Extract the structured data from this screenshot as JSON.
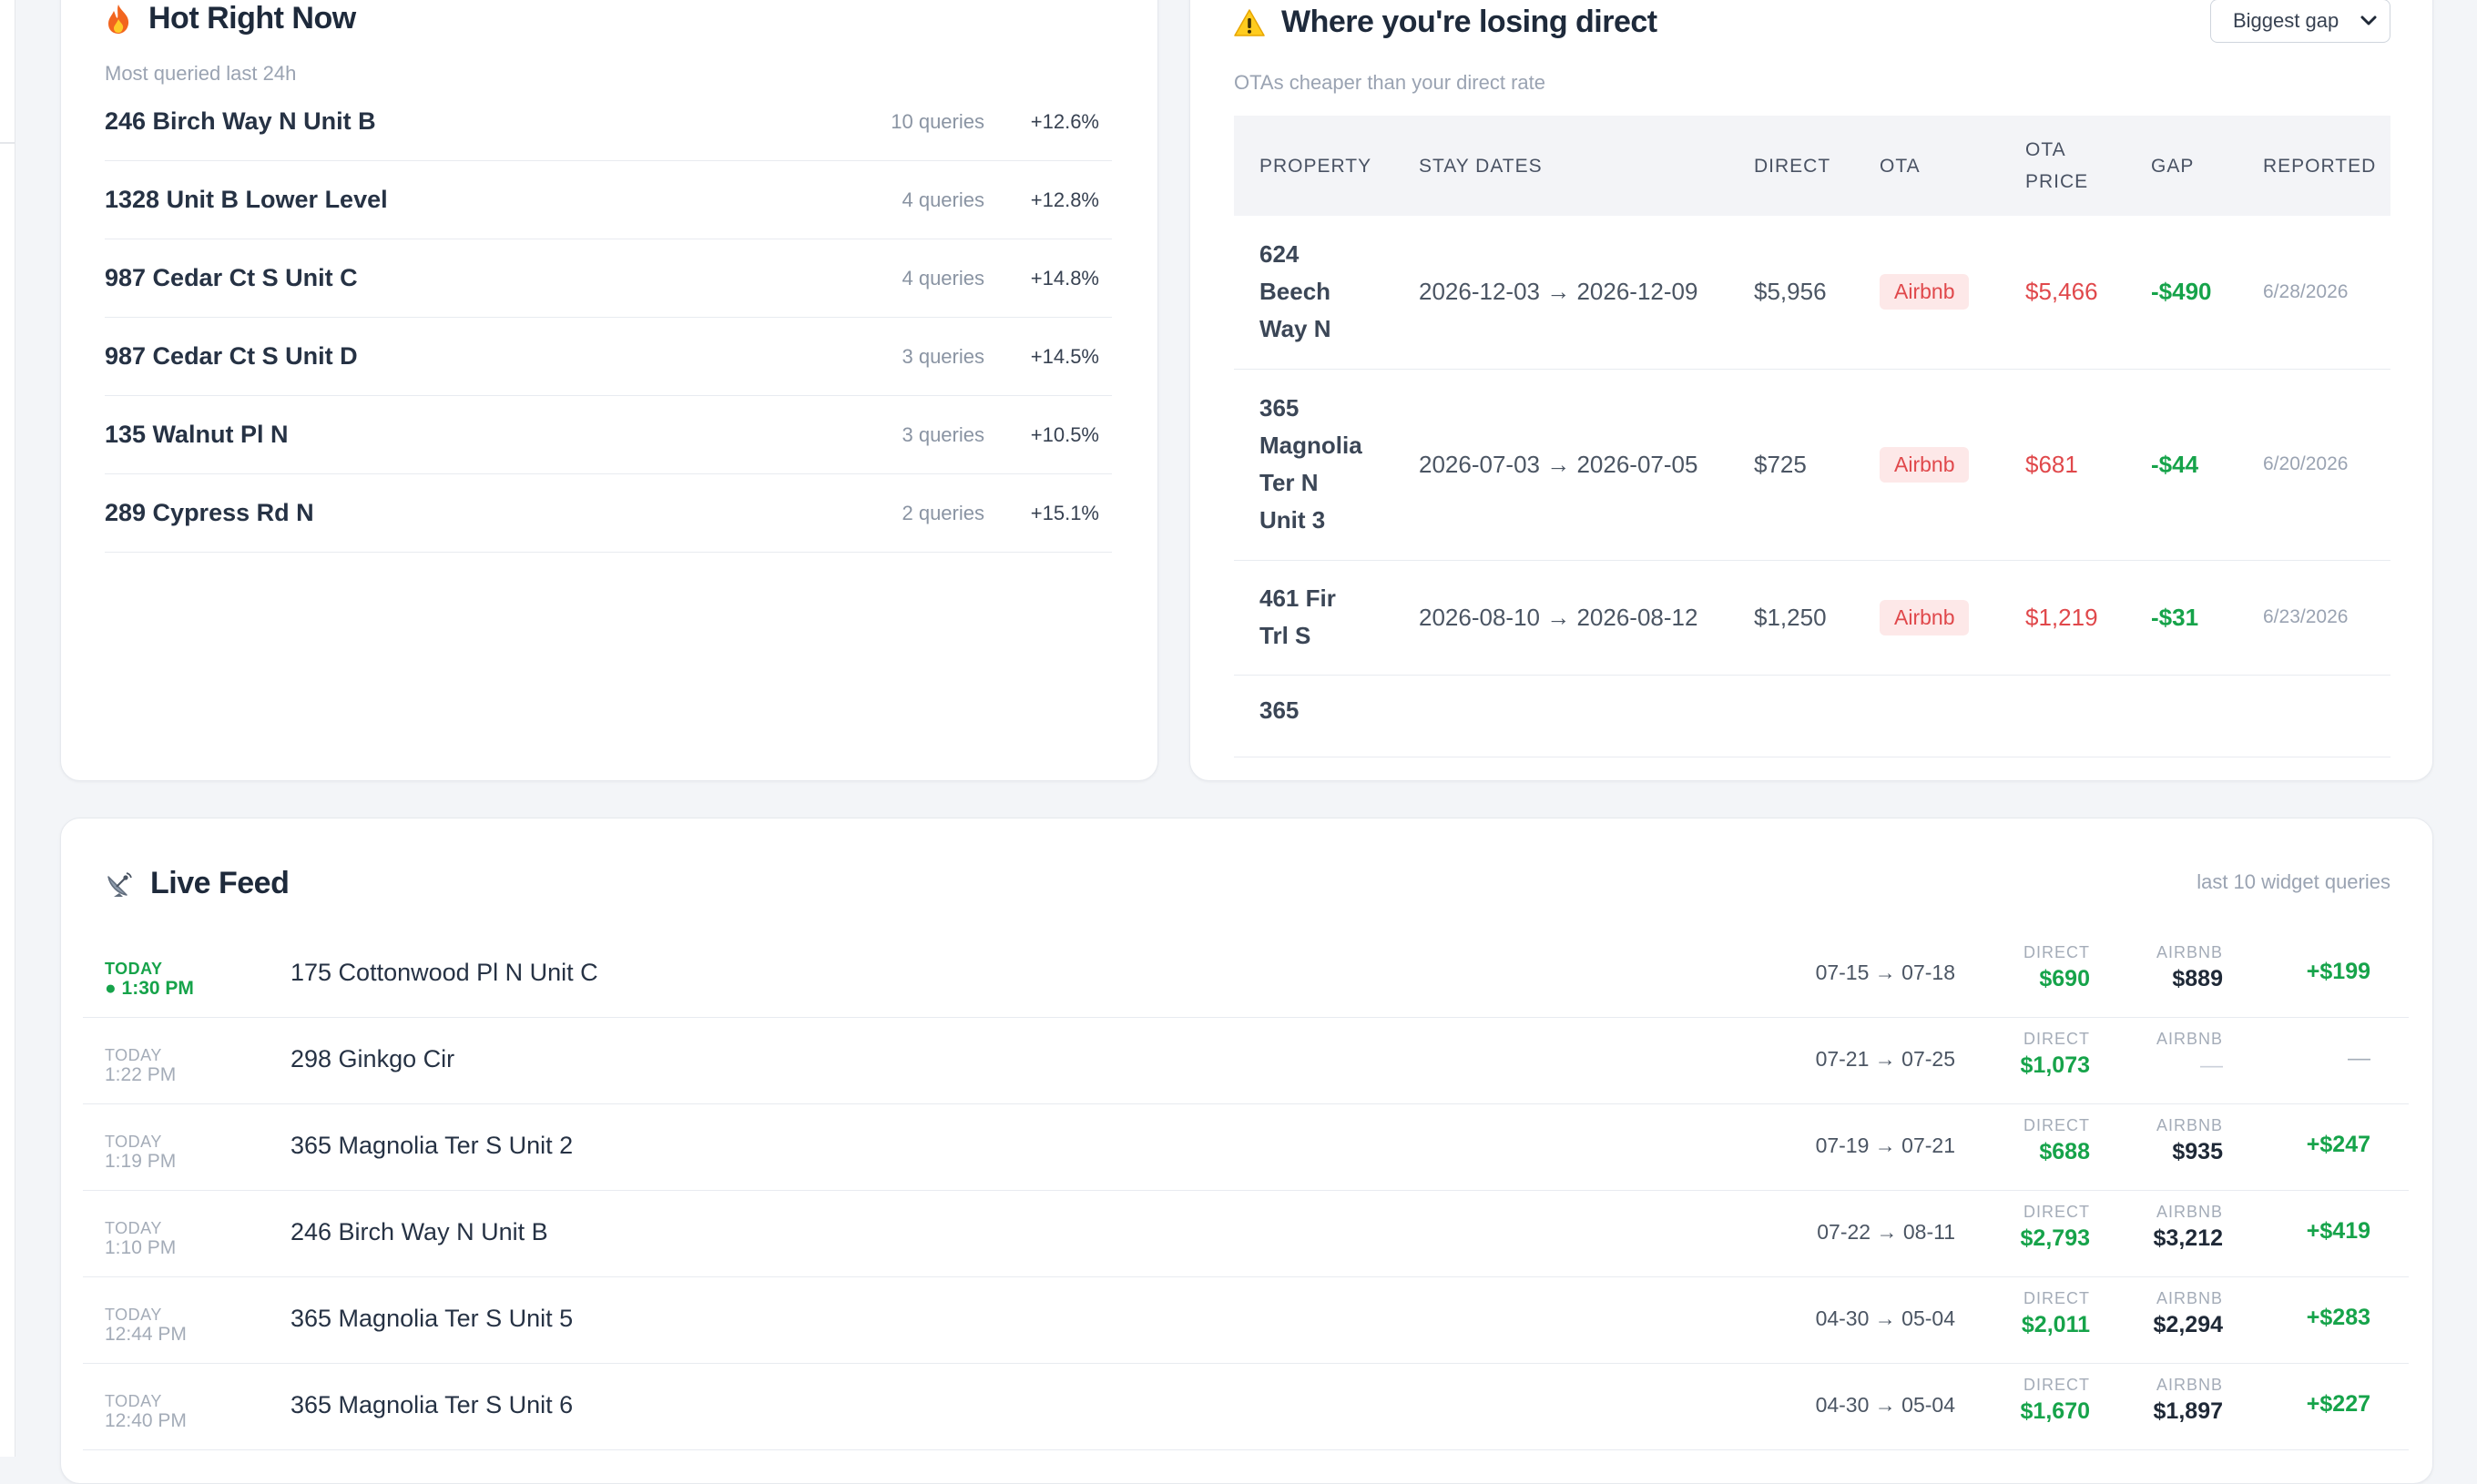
{
  "hot": {
    "title": "Hot Right Now",
    "subtitle": "Most queried last 24h",
    "icon": "fire-icon",
    "items": [
      {
        "name": "246 Birch Way N Unit B",
        "queries": "10 queries",
        "change": "+12.6%"
      },
      {
        "name": "1328 Unit B Lower Level",
        "queries": "4 queries",
        "change": "+12.8%"
      },
      {
        "name": "987 Cedar Ct S Unit C",
        "queries": "4 queries",
        "change": "+14.8%"
      },
      {
        "name": "987 Cedar Ct S Unit D",
        "queries": "3 queries",
        "change": "+14.5%"
      },
      {
        "name": "135 Walnut Pl N",
        "queries": "3 queries",
        "change": "+10.5%"
      },
      {
        "name": "289 Cypress Rd N",
        "queries": "2 queries",
        "change": "+15.1%"
      }
    ]
  },
  "losing": {
    "title": "Where you're losing direct",
    "subtitle": "OTAs cheaper than your direct rate",
    "icon": "warning-icon",
    "sort_selected": "Biggest gap",
    "columns": [
      "PROPERTY",
      "STAY DATES",
      "DIRECT",
      "OTA",
      "OTA\nPRICE",
      "GAP",
      "REPORTED"
    ],
    "rows": [
      {
        "property": "624\nBeech\nWay N",
        "dates": "2026-12-03 → 2026-12-09",
        "direct": "$5,956",
        "ota": "Airbnb",
        "ota_price": "$5,466",
        "gap": "-$490",
        "reported": "6/28/2026"
      },
      {
        "property": "365\nMagnolia\nTer N\nUnit 3",
        "dates": "2026-07-03 → 2026-07-05",
        "direct": "$725",
        "ota": "Airbnb",
        "ota_price": "$681",
        "gap": "-$44",
        "reported": "6/20/2026"
      },
      {
        "property": "461 Fir\nTrl S",
        "dates": "2026-08-10 → 2026-08-12",
        "direct": "$1,250",
        "ota": "Airbnb",
        "ota_price": "$1,219",
        "gap": "-$31",
        "reported": "6/23/2026"
      },
      {
        "property": "365",
        "dates": "",
        "direct": "",
        "ota": "",
        "ota_price": "",
        "gap": "",
        "reported": ""
      }
    ],
    "colors": {
      "ota_price": "#e0484b",
      "gap": "#16a34a",
      "badge_bg": "#fde8e8"
    }
  },
  "feed": {
    "title": "Live Feed",
    "subtitle": "last 10 widget queries",
    "icon": "satellite-dish-icon",
    "direct_label": "DIRECT",
    "ota_label": "AIRBNB",
    "rows": [
      {
        "day": "TODAY",
        "time": "● 1:30 PM",
        "live": true,
        "property": "175 Cottonwood Pl N Unit C",
        "dates": "07-15 → 07-18",
        "direct": "$690",
        "ota": "$889",
        "diff": "+$199"
      },
      {
        "day": "TODAY",
        "time": "1:22 PM",
        "live": false,
        "property": "298 Ginkgo Cir",
        "dates": "07-21 → 07-25",
        "direct": "$1,073",
        "ota": "—",
        "diff": "—"
      },
      {
        "day": "TODAY",
        "time": "1:19 PM",
        "live": false,
        "property": "365 Magnolia Ter S Unit 2",
        "dates": "07-19 → 07-21",
        "direct": "$688",
        "ota": "$935",
        "diff": "+$247"
      },
      {
        "day": "TODAY",
        "time": "1:10 PM",
        "live": false,
        "property": "246 Birch Way N Unit B",
        "dates": "07-22 → 08-11",
        "direct": "$2,793",
        "ota": "$3,212",
        "diff": "+$419"
      },
      {
        "day": "TODAY",
        "time": "12:44 PM",
        "live": false,
        "property": "365 Magnolia Ter S Unit 5",
        "dates": "04-30 → 05-04",
        "direct": "$2,011",
        "ota": "$2,294",
        "diff": "+$283"
      },
      {
        "day": "TODAY",
        "time": "12:40 PM",
        "live": false,
        "property": "365 Magnolia Ter S Unit 6",
        "dates": "04-30 → 05-04",
        "direct": "$1,670",
        "ota": "$1,897",
        "diff": "+$227"
      }
    ],
    "colors": {
      "live": "#16a34a",
      "direct": "#16a34a"
    }
  }
}
